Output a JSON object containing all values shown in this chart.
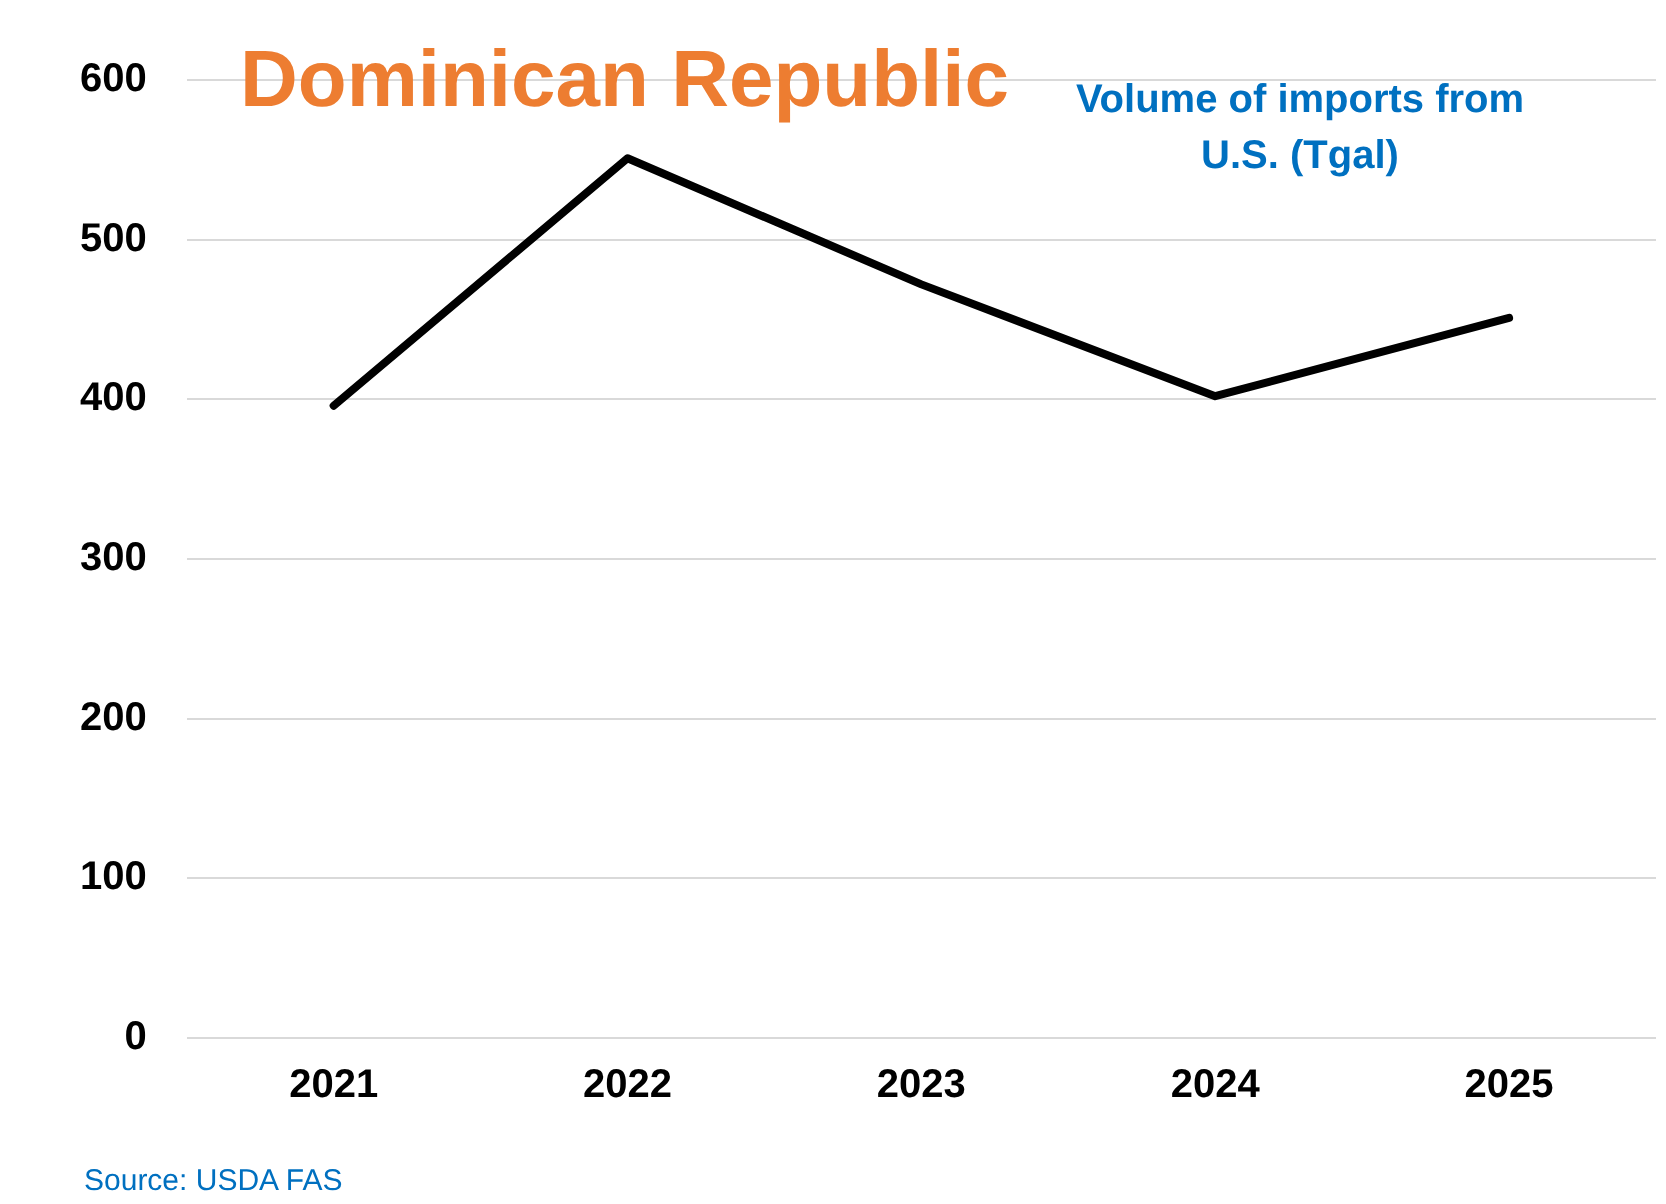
{
  "chart_data": {
    "type": "line",
    "title": "Dominican Republic",
    "subtitle": "Volume of imports from U.S. (Tgal)",
    "categories": [
      "2021",
      "2022",
      "2023",
      "2024",
      "2025"
    ],
    "series": [
      {
        "color": "#000000",
        "values": [
          396,
          551,
          472,
          402,
          451
        ]
      }
    ],
    "ylim": [
      0,
      600
    ],
    "yticks": [
      0,
      100,
      200,
      300,
      400,
      500,
      600
    ],
    "grid": "y",
    "legend": false,
    "marker": "none",
    "line_style": "solid",
    "annotations": [
      "Source: USDA FAS"
    ]
  }
}
